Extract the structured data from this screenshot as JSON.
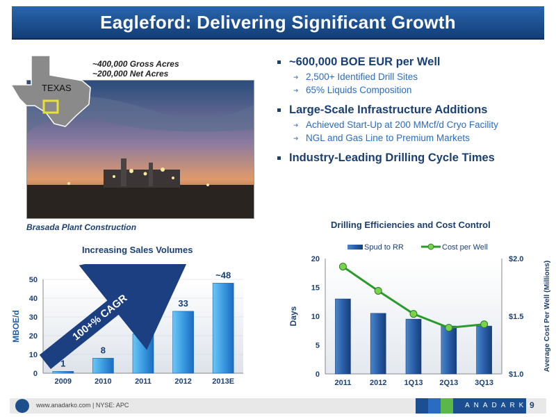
{
  "title": "Eagleford: Delivering Significant Growth",
  "map": {
    "state_label": "TEXAS"
  },
  "acres": [
    "~400,000 Gross Acres",
    "~200,000 Net Acres"
  ],
  "photo_caption": "Brasada Plant Construction",
  "bullets": [
    {
      "text": "~600,000 BOE EUR per Well",
      "subs": [
        "2,500+ Identified Drill Sites",
        "65% Liquids Composition"
      ]
    },
    {
      "text": "Large-Scale Infrastructure Additions",
      "subs": [
        "Achieved Start-Up at 200 MMcf/d Cryo Facility",
        "NGL and Gas Line to Premium Markets"
      ]
    },
    {
      "text": "Industry-Leading Drilling Cycle Times",
      "subs": []
    }
  ],
  "chart_data": [
    {
      "type": "bar",
      "title": "Increasing Sales Volumes",
      "ylabel": "MBOE/d",
      "categories": [
        "2009",
        "2010",
        "2011",
        "2012",
        "2013E"
      ],
      "values": [
        1,
        8,
        21,
        33,
        48
      ],
      "value_labels": [
        "1",
        "8",
        "21",
        "33",
        "~48"
      ],
      "ylim": [
        0,
        50
      ],
      "yticks": [
        0,
        10,
        20,
        30,
        40,
        50
      ],
      "annotation": "100+% CAGR"
    },
    {
      "type": "bar+line",
      "title": "Drilling Efficiencies and Cost Control",
      "categories": [
        "2011",
        "2012",
        "1Q13",
        "2Q13",
        "3Q13"
      ],
      "series": [
        {
          "name": "Spud to RR",
          "type": "bar",
          "axis": "left",
          "values": [
            13,
            10.5,
            9.5,
            8.3,
            8.3
          ]
        },
        {
          "name": "Cost per Well",
          "type": "line",
          "axis": "right",
          "values": [
            1.93,
            1.72,
            1.52,
            1.4,
            1.43
          ]
        }
      ],
      "ylabel": "Days",
      "y2label": "Average Cost Per Well (Millions)",
      "ylim": [
        0,
        20
      ],
      "yticks": [
        0,
        5,
        10,
        15,
        20
      ],
      "y2lim": [
        1.0,
        2.0
      ],
      "y2ticks": [
        "$1.0",
        "$1.5",
        "$2.0"
      ],
      "legend": "top"
    }
  ],
  "footer": {
    "url": "www.anadarko.com | NYSE: APC",
    "brand": "ANADARKO",
    "page": "9"
  },
  "colors": {
    "title_bar": "#1b4f91",
    "bar": "#1f5fa8",
    "bar_light": "#5cb8f0",
    "line": "#2a9a2a",
    "text": "#1a3f73"
  }
}
